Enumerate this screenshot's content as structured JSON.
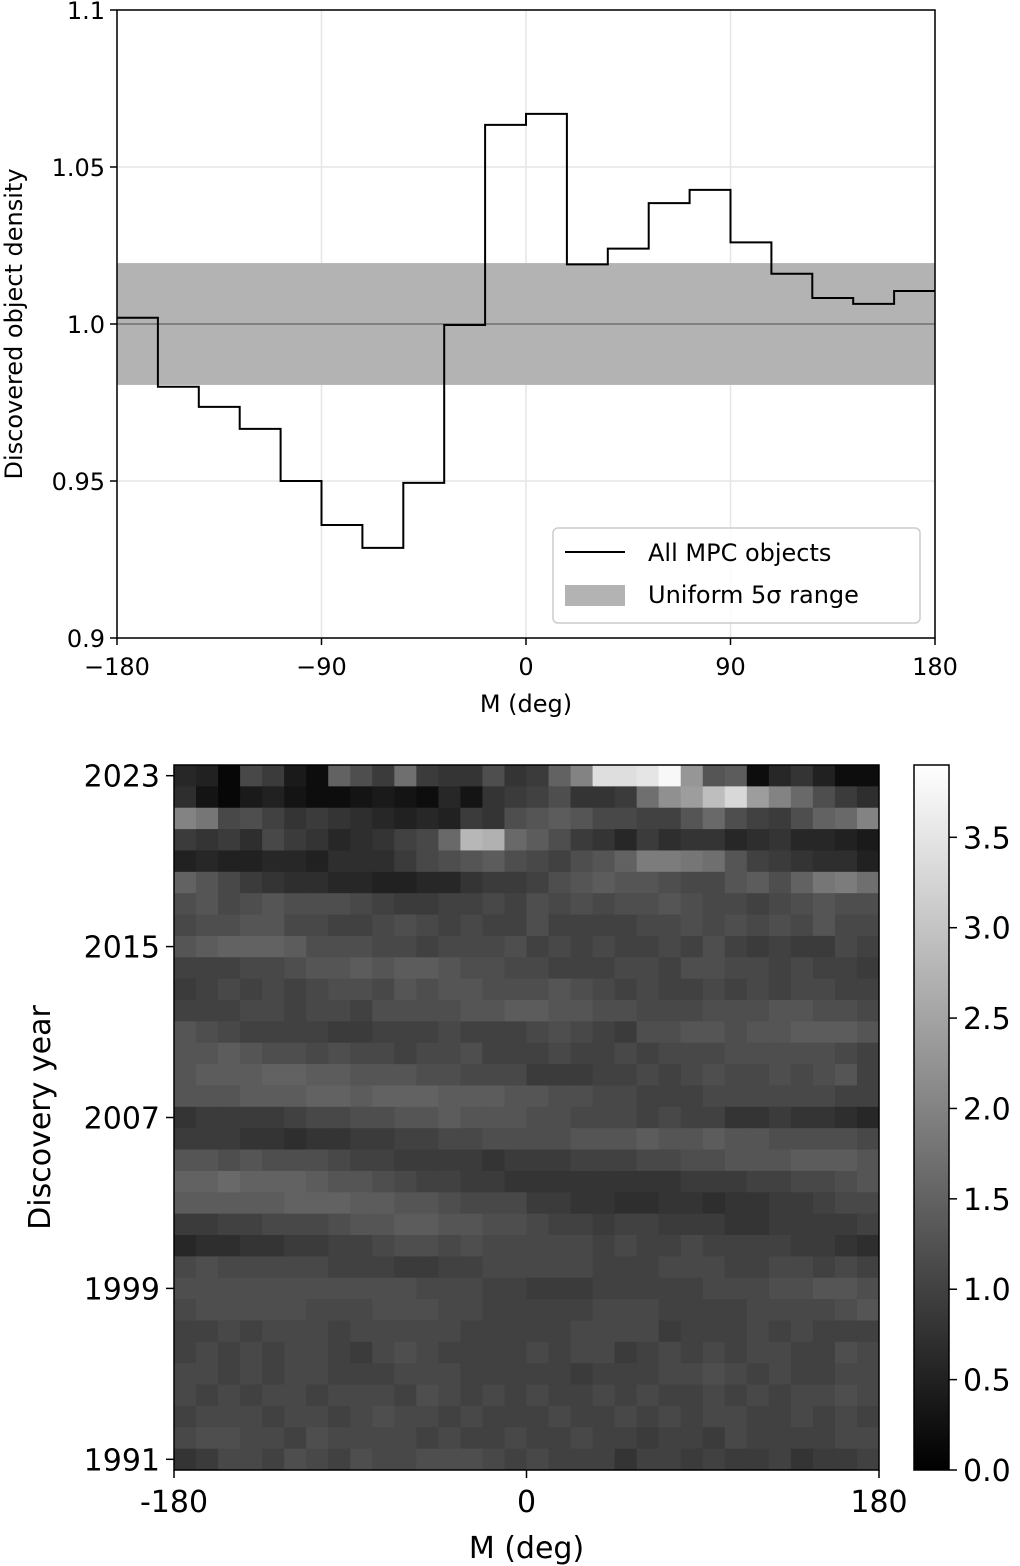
{
  "chart_data": [
    {
      "type": "step",
      "drawstyle": "steps-post",
      "x": [
        -180,
        -162,
        -144,
        -126,
        -108,
        -90,
        -72,
        -54,
        -36,
        -18,
        0,
        18,
        36,
        54,
        72,
        90,
        108,
        126,
        144,
        162
      ],
      "series": [
        {
          "name": "All MPC objects",
          "color": "#000000",
          "values": [
            1.002,
            0.98,
            0.9736,
            0.9666,
            0.95,
            0.936,
            0.9287,
            0.9494,
            0.9997,
            1.0634,
            1.0669,
            1.019,
            1.024,
            1.0385,
            1.0427,
            1.026,
            1.016,
            1.0083,
            1.0064,
            1.0105
          ]
        }
      ],
      "band": {
        "name": "Uniform 5σ range",
        "color": "#b3b3b3",
        "range": [
          0.9806,
          1.0194
        ]
      },
      "reference_line": 1.0,
      "xlabel": "M (deg)",
      "ylabel": "Discovered object density",
      "xlim": [
        -180,
        180
      ],
      "xticks": [
        {
          "value": -180,
          "label": "−180"
        },
        {
          "value": -90,
          "label": "−90"
        },
        0,
        90,
        180
      ],
      "ylim": [
        0.9,
        1.1
      ],
      "yticks": [
        0.9,
        0.95,
        {
          "value": 1.0,
          "label": "1.0"
        },
        1.05,
        1.1
      ],
      "grid": true,
      "legend": "lower right"
    },
    {
      "type": "heatmap",
      "colormap": "gray",
      "xlabel": "M (deg)",
      "ylabel": "Discovery year",
      "xlim": [
        -180,
        180
      ],
      "xticks": [
        -180,
        0,
        180
      ],
      "ylim": [
        1990.5,
        2023.5
      ],
      "yticks": [
        1991,
        1999,
        2007,
        2015,
        2023
      ],
      "y": [
        2023,
        2022,
        2021,
        2020,
        2019,
        2018,
        2017,
        2016,
        2015,
        2014,
        2013,
        2012,
        2011,
        2010,
        2009,
        2008,
        2007,
        2006,
        2005,
        2004,
        2003,
        2002,
        2001,
        2000,
        1999,
        1998,
        1997,
        1996,
        1995,
        1994,
        1993,
        1992,
        1991
      ],
      "clim": [
        0,
        3.9
      ],
      "cticks": [
        {
          "value": 0,
          "label": "0.0"
        },
        0.5,
        {
          "value": 1,
          "label": "1.0"
        },
        1.5,
        {
          "value": 2,
          "label": "2.0"
        },
        2.5,
        {
          "value": 3,
          "label": "3.0"
        },
        3.5
      ],
      "values": [
        [
          0.6,
          0.5,
          0.1,
          1.1,
          0.9,
          0.4,
          0.2,
          1.5,
          1.2,
          0.9,
          1.7,
          0.9,
          0.8,
          0.8,
          1.2,
          0.8,
          0.9,
          1.5,
          2.0,
          3.4,
          3.4,
          3.5,
          3.8,
          2.3,
          1.3,
          1.4,
          0.2,
          0.6,
          0.8,
          0.5,
          0.2,
          0.2
        ],
        [
          0.7,
          0.3,
          0.1,
          0.4,
          0.5,
          0.3,
          0.2,
          0.2,
          0.3,
          0.4,
          0.3,
          0.2,
          0.6,
          0.3,
          0.8,
          0.9,
          1.0,
          1.2,
          0.8,
          0.8,
          0.9,
          1.7,
          2.2,
          2.4,
          2.9,
          3.3,
          2.4,
          2.0,
          1.6,
          1.2,
          0.9,
          0.7
        ],
        [
          2.0,
          1.8,
          1.1,
          1.2,
          1.0,
          0.8,
          0.9,
          0.8,
          0.7,
          0.6,
          0.5,
          0.6,
          0.5,
          0.9,
          0.8,
          1.2,
          1.3,
          1.4,
          1.3,
          1.1,
          1.1,
          1.0,
          1.0,
          1.3,
          1.6,
          1.2,
          1.0,
          0.9,
          1.2,
          1.5,
          1.6,
          2.0
        ],
        [
          0.9,
          0.8,
          0.9,
          0.7,
          1.1,
          0.9,
          0.8,
          0.6,
          0.7,
          0.8,
          1.0,
          1.1,
          1.6,
          2.8,
          2.7,
          1.6,
          1.4,
          1.2,
          0.9,
          0.8,
          0.6,
          0.9,
          0.7,
          0.8,
          0.8,
          0.6,
          0.7,
          0.8,
          0.6,
          0.6,
          0.5,
          0.4
        ],
        [
          0.5,
          0.6,
          0.5,
          0.5,
          0.6,
          0.6,
          0.5,
          0.7,
          0.7,
          0.7,
          0.9,
          1.1,
          1.2,
          1.3,
          1.4,
          1.2,
          1.1,
          1.0,
          1.2,
          1.3,
          1.5,
          1.9,
          1.9,
          1.8,
          1.7,
          1.3,
          1.0,
          0.9,
          0.8,
          0.7,
          0.7,
          0.5
        ],
        [
          1.5,
          1.3,
          1.1,
          0.9,
          0.8,
          0.7,
          0.7,
          0.6,
          0.6,
          0.5,
          0.5,
          0.6,
          0.6,
          0.8,
          0.9,
          0.9,
          1.0,
          1.2,
          1.3,
          1.4,
          1.3,
          1.3,
          1.2,
          1.1,
          1.1,
          1.3,
          1.4,
          1.2,
          1.5,
          1.8,
          1.9,
          1.7
        ],
        [
          1.2,
          1.3,
          1.1,
          1.2,
          1.3,
          1.2,
          1.2,
          1.2,
          1.1,
          1.0,
          0.9,
          0.9,
          1.0,
          1.0,
          1.1,
          1.0,
          1.2,
          1.1,
          1.2,
          1.1,
          1.2,
          1.2,
          1.3,
          1.2,
          1.1,
          1.1,
          1.0,
          1.1,
          1.2,
          1.3,
          1.2,
          1.2
        ],
        [
          1.1,
          1.2,
          1.2,
          1.3,
          1.3,
          1.1,
          1.1,
          1.0,
          1.0,
          1.1,
          1.2,
          1.1,
          1.0,
          1.1,
          1.0,
          1.0,
          1.2,
          1.0,
          1.0,
          1.0,
          1.0,
          1.1,
          1.1,
          1.2,
          1.1,
          1.2,
          1.1,
          1.2,
          1.1,
          1.3,
          1.1,
          1.1
        ],
        [
          1.3,
          1.4,
          1.5,
          1.5,
          1.5,
          1.4,
          1.2,
          1.2,
          1.2,
          1.1,
          1.1,
          1.0,
          1.1,
          1.1,
          1.1,
          1.2,
          1.0,
          1.1,
          1.0,
          1.1,
          1.0,
          1.0,
          1.1,
          1.0,
          1.2,
          1.0,
          0.9,
          1.0,
          0.9,
          0.9,
          1.1,
          1.0
        ],
        [
          1.0,
          1.0,
          1.0,
          1.1,
          1.1,
          1.2,
          1.3,
          1.3,
          1.4,
          1.3,
          1.4,
          1.4,
          1.3,
          1.2,
          1.2,
          1.1,
          1.1,
          1.0,
          1.0,
          1.0,
          1.1,
          1.1,
          1.0,
          1.2,
          1.2,
          1.1,
          1.1,
          1.0,
          1.1,
          1.0,
          1.0,
          0.9
        ],
        [
          0.9,
          1.0,
          1.1,
          1.0,
          1.1,
          1.0,
          1.1,
          1.2,
          1.2,
          1.1,
          1.3,
          1.2,
          1.3,
          1.3,
          1.2,
          1.2,
          1.2,
          1.3,
          1.2,
          1.1,
          1.0,
          1.1,
          1.0,
          1.0,
          1.1,
          1.0,
          1.1,
          1.0,
          1.1,
          1.1,
          1.0,
          1.0
        ],
        [
          1.0,
          1.0,
          1.0,
          1.1,
          1.1,
          1.0,
          1.1,
          1.1,
          1.0,
          1.2,
          1.2,
          1.2,
          1.2,
          1.3,
          1.3,
          1.4,
          1.4,
          1.3,
          1.3,
          1.2,
          1.2,
          1.1,
          1.1,
          1.1,
          1.2,
          1.2,
          1.2,
          1.3,
          1.3,
          1.2,
          1.2,
          1.1
        ],
        [
          1.3,
          1.2,
          1.1,
          1.0,
          1.0,
          1.0,
          1.0,
          0.9,
          0.9,
          1.0,
          1.0,
          1.0,
          1.1,
          1.0,
          1.0,
          1.0,
          1.1,
          1.2,
          1.1,
          1.0,
          0.9,
          1.2,
          1.2,
          1.3,
          1.3,
          1.2,
          1.3,
          1.3,
          1.4,
          1.4,
          1.4,
          1.3
        ],
        [
          1.3,
          1.3,
          1.4,
          1.3,
          1.2,
          1.2,
          1.1,
          1.2,
          1.1,
          1.1,
          1.0,
          1.1,
          1.1,
          1.2,
          1.0,
          1.0,
          1.0,
          1.1,
          1.0,
          1.0,
          1.1,
          1.0,
          1.1,
          1.1,
          1.1,
          1.2,
          1.2,
          1.2,
          1.2,
          1.2,
          1.1,
          1.0
        ],
        [
          1.3,
          1.4,
          1.4,
          1.4,
          1.5,
          1.5,
          1.4,
          1.4,
          1.3,
          1.3,
          1.3,
          1.2,
          1.2,
          1.1,
          1.1,
          1.1,
          0.9,
          0.9,
          0.9,
          1.0,
          1.0,
          1.1,
          1.0,
          1.1,
          1.2,
          1.1,
          1.1,
          1.2,
          1.1,
          1.2,
          1.3,
          1.0
        ],
        [
          1.3,
          1.3,
          1.3,
          1.4,
          1.4,
          1.4,
          1.5,
          1.5,
          1.4,
          1.5,
          1.5,
          1.5,
          1.4,
          1.4,
          1.4,
          1.3,
          1.3,
          1.2,
          1.2,
          1.1,
          1.1,
          1.0,
          1.0,
          1.0,
          1.1,
          1.1,
          1.1,
          1.1,
          1.1,
          1.1,
          1.0,
          1.0
        ],
        [
          0.8,
          0.9,
          0.9,
          0.9,
          0.9,
          1.0,
          1.1,
          1.1,
          1.2,
          1.2,
          1.3,
          1.3,
          1.4,
          1.3,
          1.3,
          1.3,
          1.2,
          1.2,
          1.1,
          1.1,
          1.1,
          1.0,
          1.1,
          1.0,
          1.0,
          0.8,
          0.8,
          0.9,
          0.8,
          0.8,
          0.7,
          0.6
        ],
        [
          0.9,
          0.9,
          0.9,
          0.8,
          0.8,
          0.7,
          0.8,
          0.8,
          0.9,
          0.9,
          1.0,
          1.0,
          1.1,
          1.1,
          1.2,
          1.2,
          1.2,
          1.2,
          1.3,
          1.3,
          1.3,
          1.4,
          1.3,
          1.3,
          1.4,
          1.3,
          1.3,
          1.2,
          1.2,
          1.2,
          1.2,
          1.1
        ],
        [
          1.3,
          1.3,
          1.2,
          1.3,
          1.2,
          1.2,
          1.2,
          1.1,
          1.0,
          1.0,
          0.9,
          0.9,
          0.9,
          0.9,
          0.8,
          0.9,
          0.9,
          0.9,
          1.0,
          1.0,
          1.0,
          1.1,
          1.1,
          1.2,
          1.2,
          1.3,
          1.3,
          1.3,
          1.4,
          1.4,
          1.4,
          1.3
        ],
        [
          1.5,
          1.5,
          1.6,
          1.5,
          1.5,
          1.5,
          1.4,
          1.3,
          1.3,
          1.2,
          1.1,
          1.0,
          1.0,
          0.9,
          0.9,
          0.8,
          0.8,
          0.8,
          0.8,
          0.8,
          0.8,
          0.8,
          0.8,
          0.9,
          0.9,
          0.9,
          1.0,
          1.0,
          1.1,
          1.1,
          1.2,
          1.3
        ],
        [
          1.4,
          1.4,
          1.4,
          1.4,
          1.4,
          1.5,
          1.5,
          1.5,
          1.4,
          1.4,
          1.3,
          1.3,
          1.2,
          1.1,
          1.1,
          1.1,
          0.9,
          0.9,
          0.8,
          0.8,
          0.7,
          0.7,
          0.8,
          0.8,
          0.7,
          0.8,
          0.8,
          0.9,
          0.9,
          1.0,
          1.1,
          1.1
        ],
        [
          0.9,
          0.9,
          1.0,
          1.0,
          1.1,
          1.1,
          1.1,
          1.2,
          1.3,
          1.3,
          1.4,
          1.4,
          1.3,
          1.3,
          1.2,
          1.2,
          1.1,
          1.0,
          1.0,
          0.9,
          1.0,
          1.0,
          0.9,
          0.9,
          0.9,
          0.8,
          0.8,
          0.9,
          0.9,
          0.9,
          0.9,
          1.0
        ],
        [
          0.6,
          0.7,
          0.7,
          0.8,
          0.8,
          0.9,
          0.9,
          1.0,
          1.0,
          1.1,
          1.2,
          1.2,
          1.1,
          1.2,
          1.1,
          1.1,
          1.1,
          1.1,
          1.1,
          1.0,
          1.1,
          1.0,
          1.0,
          1.1,
          1.0,
          1.0,
          1.0,
          1.0,
          0.9,
          0.9,
          0.8,
          0.7
        ],
        [
          1.1,
          1.2,
          1.1,
          1.1,
          1.1,
          1.1,
          1.1,
          1.0,
          1.0,
          1.0,
          0.9,
          0.9,
          1.0,
          1.0,
          1.1,
          1.1,
          1.1,
          1.1,
          1.1,
          1.0,
          1.0,
          1.0,
          1.1,
          1.1,
          1.1,
          1.0,
          1.0,
          1.1,
          1.1,
          1.0,
          1.1,
          1.0
        ],
        [
          1.2,
          1.2,
          1.2,
          1.2,
          1.2,
          1.2,
          1.2,
          1.2,
          1.2,
          1.2,
          1.2,
          1.1,
          1.1,
          1.1,
          1.0,
          1.0,
          0.9,
          0.9,
          0.9,
          1.0,
          1.0,
          1.0,
          1.0,
          1.0,
          1.1,
          1.1,
          1.1,
          1.2,
          1.2,
          1.3,
          1.3,
          1.2
        ],
        [
          1.1,
          1.2,
          1.2,
          1.2,
          1.2,
          1.2,
          1.1,
          1.1,
          1.1,
          1.2,
          1.2,
          1.2,
          1.1,
          1.1,
          1.0,
          1.0,
          1.0,
          1.0,
          1.0,
          1.1,
          1.1,
          1.1,
          1.0,
          1.0,
          1.0,
          1.0,
          1.1,
          1.1,
          1.1,
          1.1,
          1.2,
          1.3
        ],
        [
          1.0,
          1.0,
          1.1,
          1.0,
          1.1,
          1.1,
          1.1,
          1.0,
          1.1,
          1.1,
          1.1,
          1.1,
          1.1,
          1.0,
          1.0,
          1.0,
          1.0,
          1.0,
          1.1,
          1.1,
          1.1,
          1.1,
          0.9,
          1.0,
          1.0,
          1.0,
          1.1,
          1.0,
          1.1,
          1.0,
          1.0,
          1.0
        ],
        [
          1.0,
          1.1,
          1.0,
          1.1,
          1.0,
          1.1,
          1.1,
          1.0,
          0.9,
          1.1,
          1.2,
          1.1,
          1.0,
          1.0,
          1.0,
          1.0,
          1.1,
          1.0,
          1.1,
          1.1,
          0.9,
          1.0,
          1.1,
          1.0,
          1.1,
          1.0,
          1.1,
          1.1,
          1.0,
          1.0,
          1.2,
          1.1
        ],
        [
          1.1,
          1.1,
          1.0,
          1.1,
          1.0,
          1.1,
          1.1,
          1.0,
          1.0,
          1.0,
          1.1,
          1.1,
          1.1,
          1.0,
          1.0,
          1.0,
          1.0,
          1.0,
          0.9,
          1.0,
          1.0,
          1.0,
          1.1,
          1.1,
          1.2,
          1.1,
          1.0,
          1.1,
          1.0,
          1.0,
          1.1,
          1.1
        ],
        [
          1.1,
          1.0,
          1.1,
          1.0,
          1.1,
          1.1,
          1.0,
          1.1,
          1.1,
          1.1,
          1.0,
          1.2,
          1.1,
          1.0,
          1.1,
          1.0,
          1.1,
          1.0,
          1.0,
          1.1,
          1.0,
          1.1,
          1.0,
          1.0,
          1.1,
          1.0,
          1.1,
          1.0,
          1.1,
          1.1,
          1.2,
          1.1
        ],
        [
          1.0,
          1.1,
          1.1,
          1.1,
          1.0,
          1.1,
          1.1,
          1.0,
          1.1,
          1.2,
          1.1,
          1.1,
          1.0,
          1.1,
          1.0,
          1.0,
          1.0,
          1.1,
          1.0,
          1.0,
          1.1,
          1.0,
          1.1,
          1.0,
          1.1,
          1.1,
          1.0,
          1.0,
          1.1,
          1.0,
          1.1,
          1.0
        ],
        [
          1.1,
          1.2,
          1.2,
          1.1,
          1.1,
          1.0,
          1.2,
          1.1,
          1.1,
          1.1,
          1.1,
          1.0,
          1.1,
          1.0,
          1.0,
          1.1,
          1.0,
          1.0,
          1.1,
          1.0,
          1.0,
          0.9,
          1.0,
          1.0,
          0.9,
          1.1,
          1.0,
          1.0,
          1.0,
          1.0,
          1.1,
          1.1
        ],
        [
          0.8,
          0.9,
          1.1,
          1.1,
          1.0,
          1.2,
          1.1,
          1.0,
          1.2,
          1.1,
          1.1,
          1.2,
          1.2,
          1.2,
          1.1,
          1.0,
          1.1,
          1.0,
          1.0,
          1.0,
          0.8,
          1.0,
          1.0,
          0.9,
          1.0,
          0.9,
          0.9,
          1.0,
          0.8,
          0.9,
          0.9,
          1.0
        ]
      ]
    }
  ]
}
